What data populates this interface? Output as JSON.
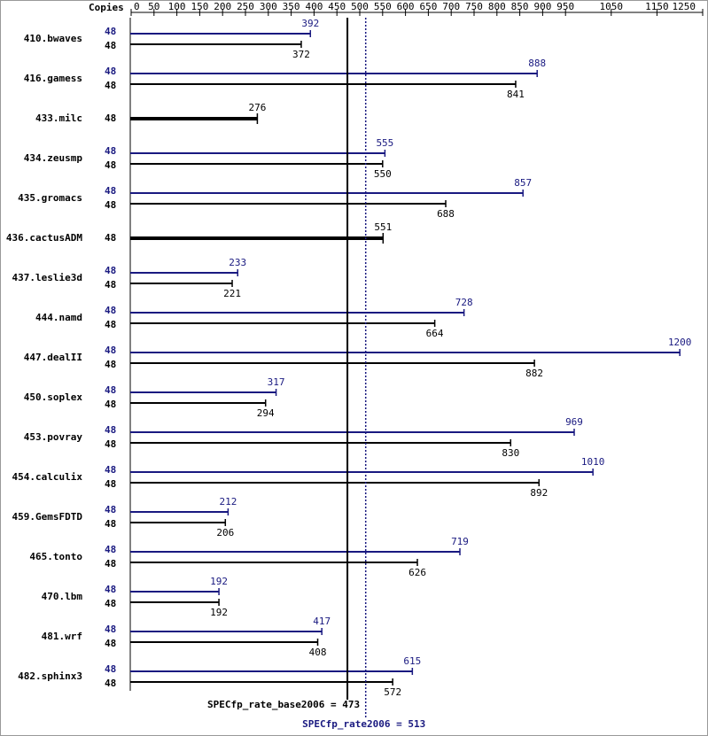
{
  "chart_data": {
    "type": "spec-rate",
    "copies_label": "Copies",
    "xlim": [
      0,
      1250
    ],
    "xticks": [
      0,
      50,
      100,
      150,
      200,
      250,
      300,
      350,
      400,
      450,
      500,
      550,
      600,
      650,
      700,
      750,
      800,
      850,
      900,
      950,
      1050,
      1150,
      1250
    ],
    "categories": [
      "410.bwaves",
      "416.gamess",
      "433.milc",
      "434.zeusmp",
      "435.gromacs",
      "436.cactusADM",
      "437.leslie3d",
      "444.namd",
      "447.dealII",
      "450.soplex",
      "453.povray",
      "454.calculix",
      "459.GemsFDTD",
      "465.tonto",
      "470.lbm",
      "481.wrf",
      "482.sphinx3"
    ],
    "peak": {
      "color": "#191980",
      "copies": [
        48,
        48,
        null,
        48,
        48,
        null,
        48,
        48,
        48,
        48,
        48,
        48,
        48,
        48,
        48,
        48,
        48
      ],
      "values": [
        392,
        888,
        null,
        555,
        857,
        null,
        233,
        728,
        1200,
        317,
        969,
        1010,
        212,
        719,
        192,
        417,
        615
      ]
    },
    "base": {
      "color": "#000000",
      "copies": [
        48,
        48,
        48,
        48,
        48,
        48,
        48,
        48,
        48,
        48,
        48,
        48,
        48,
        48,
        48,
        48,
        48
      ],
      "values": [
        372,
        841,
        276,
        550,
        688,
        551,
        221,
        664,
        882,
        294,
        830,
        892,
        206,
        626,
        192,
        408,
        572
      ]
    },
    "base_line": {
      "label": "SPECfp_rate_base2006 = 473",
      "value": 473
    },
    "peak_line": {
      "label": "SPECfp_rate2006 = 513",
      "value": 513
    }
  }
}
